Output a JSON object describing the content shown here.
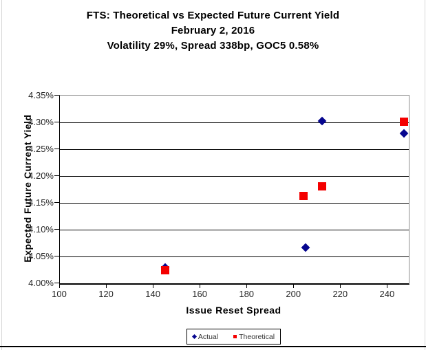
{
  "chart_data": {
    "type": "scatter",
    "title": "FTS: Theoretical vs Expected Future Current Yield",
    "subtitle_date": "February 2, 2016",
    "subtitle_params": "Volatility 29%, Spread 338bp, GOC5 0.58%",
    "xlabel": "Issue Reset Spread",
    "ylabel": "Expected Future Current Yield",
    "xlim": [
      100,
      249
    ],
    "ylim": [
      4.0,
      4.35
    ],
    "x_tick_values": [
      100,
      120,
      140,
      160,
      180,
      200,
      220,
      240
    ],
    "x_tick_labels": [
      "100",
      "120",
      "140",
      "160",
      "180",
      "200",
      "220",
      "240"
    ],
    "y_tick_values": [
      4.0,
      4.05,
      4.1,
      4.15,
      4.2,
      4.25,
      4.3,
      4.35
    ],
    "y_tick_labels": [
      "4.00%",
      "4.05%",
      "4.10%",
      "4.15%",
      "4.20%",
      "4.25%",
      "4.30%",
      "4.35%"
    ],
    "grid": "horizontal-black",
    "legend_position": "bottom-center",
    "series": [
      {
        "name": "Actual",
        "marker": "diamond",
        "color": "#06068F",
        "points": [
          [
            145,
            4.03
          ],
          [
            205,
            4.067
          ],
          [
            212,
            4.302
          ],
          [
            247,
            4.28
          ]
        ]
      },
      {
        "name": "Theoretical",
        "marker": "square",
        "color": "#F40000",
        "points": [
          [
            145,
            4.024
          ],
          [
            204,
            4.163
          ],
          [
            212,
            4.181
          ],
          [
            247,
            4.301
          ]
        ]
      }
    ]
  }
}
